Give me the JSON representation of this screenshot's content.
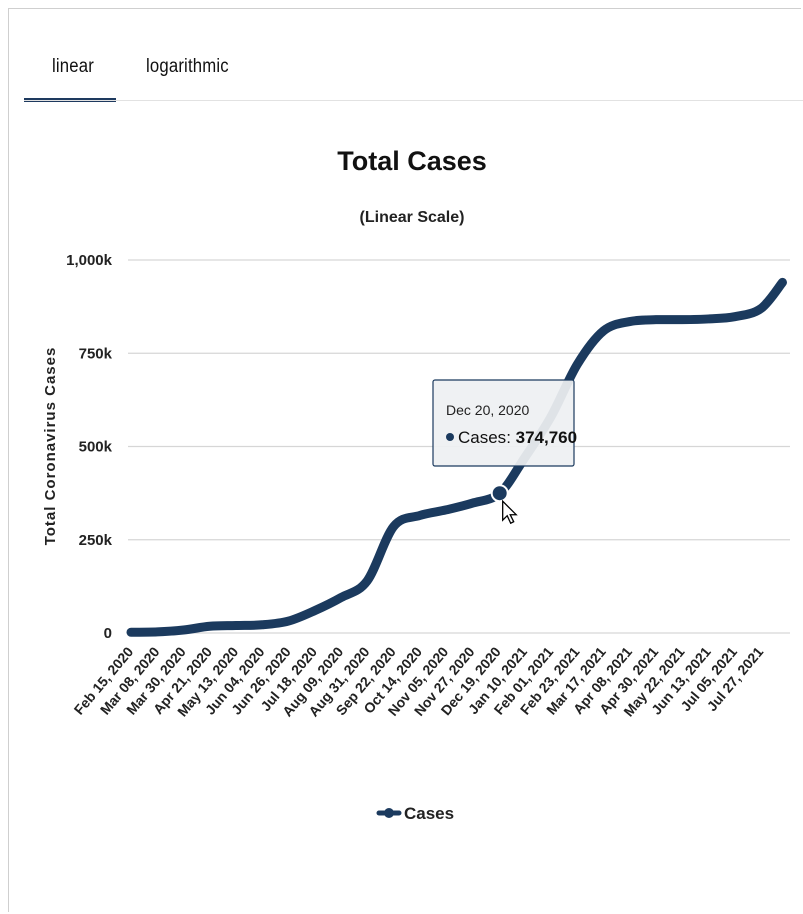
{
  "tabs": [
    {
      "label": "linear",
      "active": true
    },
    {
      "label": "logarithmic",
      "active": false
    }
  ],
  "colors": {
    "series": "#1b3a5e",
    "grid": "#d6d6d6",
    "tab_active": "#1e3a5f"
  },
  "chart_data": {
    "type": "line",
    "title": "Total Cases",
    "subtitle": "(Linear Scale)",
    "ylabel": "Total Coronavirus Cases",
    "xlabel": "",
    "ylim": [
      0,
      1000000
    ],
    "yticks": [
      {
        "value": 0,
        "label": "0"
      },
      {
        "value": 250000,
        "label": "250k"
      },
      {
        "value": 500000,
        "label": "500k"
      },
      {
        "value": 750000,
        "label": "750k"
      },
      {
        "value": 1000000,
        "label": "1,000k"
      }
    ],
    "xticks": [
      "Feb 15, 2020",
      "Mar 08, 2020",
      "Mar 30, 2020",
      "Apr 21, 2020",
      "May 13, 2020",
      "Jun 04, 2020",
      "Jun 26, 2020",
      "Jul 18, 2020",
      "Aug 09, 2020",
      "Aug 31, 2020",
      "Sep 22, 2020",
      "Oct 14, 2020",
      "Nov 05, 2020",
      "Nov 27, 2020",
      "Dec 19, 2020",
      "Jan 10, 2021",
      "Feb 01, 2021",
      "Feb 23, 2021",
      "Mar 17, 2021",
      "Apr 08, 2021",
      "Apr 30, 2021",
      "May 22, 2021",
      "Jun 13, 2021",
      "Jul 05, 2021",
      "Jul 27, 2021"
    ],
    "grid": true,
    "legend_position": "bottom-center",
    "series": [
      {
        "name": "Cases",
        "x": [
          "Feb 15, 2020",
          "Mar 08, 2020",
          "Mar 30, 2020",
          "Apr 21, 2020",
          "May 13, 2020",
          "Jun 04, 2020",
          "Jun 26, 2020",
          "Jul 18, 2020",
          "Aug 09, 2020",
          "Aug 31, 2020",
          "Sep 22, 2020",
          "Oct 14, 2020",
          "Nov 05, 2020",
          "Nov 27, 2020",
          "Dec 20, 2020",
          "Jan 10, 2021",
          "Feb 01, 2021",
          "Feb 23, 2021",
          "Mar 17, 2021",
          "Apr 08, 2021",
          "Apr 30, 2021",
          "May 22, 2021",
          "Jun 13, 2021",
          "Jul 05, 2021",
          "Jul 27, 2021",
          "Aug 14, 2021"
        ],
        "y": [
          2000,
          3000,
          8000,
          18000,
          20000,
          22000,
          32000,
          60000,
          95000,
          140000,
          285000,
          315000,
          330000,
          348000,
          374760,
          470000,
          580000,
          720000,
          810000,
          835000,
          840000,
          840000,
          842000,
          848000,
          870000,
          940000
        ]
      }
    ],
    "tooltip": {
      "date": "Dec 20, 2020",
      "series": "Cases",
      "value": "374,760",
      "value_raw": 374760
    }
  }
}
